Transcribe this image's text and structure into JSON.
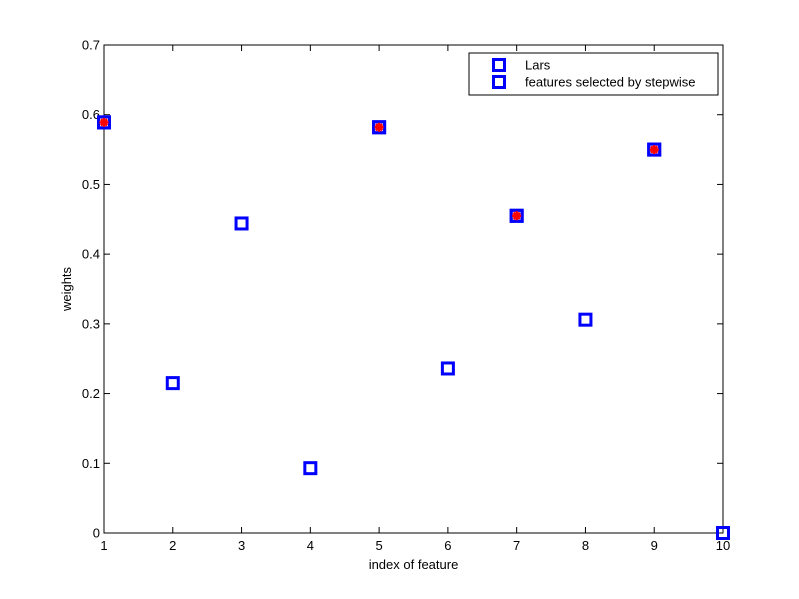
{
  "chart_data": {
    "type": "scatter",
    "title": "",
    "xlabel": "index of feature",
    "ylabel": "weights",
    "xlim": [
      1,
      10
    ],
    "ylim": [
      0,
      0.7
    ],
    "xticks": [
      "1",
      "2",
      "3",
      "4",
      "5",
      "6",
      "7",
      "8",
      "9",
      "10"
    ],
    "yticks": [
      "0",
      "0.1",
      "0.2",
      "0.3",
      "0.4",
      "0.5",
      "0.6",
      "0.7"
    ],
    "grid": false,
    "legend_position": "top-right",
    "series": [
      {
        "name": "Lars",
        "marker": "square",
        "color": "#0000ff",
        "x": [
          1,
          2,
          3,
          4,
          5,
          6,
          7,
          8,
          9,
          10
        ],
        "y": [
          0.589,
          0.215,
          0.444,
          0.093,
          0.582,
          0.236,
          0.455,
          0.306,
          0.55,
          0.0
        ]
      },
      {
        "name": "features selected by stepwise",
        "marker": "square",
        "color": "#0000ff",
        "overlay_color": "#ff0000",
        "x": [
          1,
          5,
          7,
          9
        ],
        "y": [
          0.589,
          0.582,
          0.455,
          0.55
        ]
      }
    ]
  }
}
